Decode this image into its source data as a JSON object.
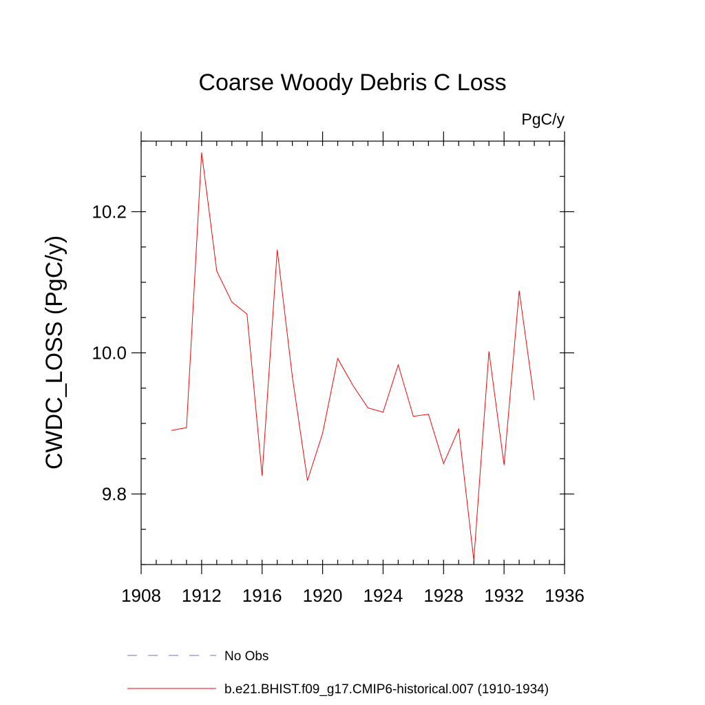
{
  "chart_data": {
    "type": "line",
    "title": "Coarse Woody Debris C Loss",
    "units_label": "PgC/y",
    "xlabel": "",
    "ylabel": "CWDC_LOSS  (PgC/y)",
    "xlim": [
      1908,
      1936
    ],
    "ylim": [
      9.7,
      10.3
    ],
    "x_ticks": [
      1908,
      1912,
      1916,
      1920,
      1924,
      1928,
      1932,
      1936
    ],
    "x_minor_step": 1,
    "y_ticks": [
      9.8,
      10.0,
      10.2
    ],
    "y_tick_labels": [
      "9.8",
      "10.0",
      "10.2"
    ],
    "y_minor_step": 0.05,
    "grid": false,
    "series": [
      {
        "name": "b.e21.BHIST.f09_g17.CMIP6-historical.007 (1910-1934)",
        "color": "#ff0000",
        "dashed": false,
        "x": [
          1910,
          1911,
          1912,
          1913,
          1914,
          1915,
          1916,
          1917,
          1918,
          1919,
          1920,
          1921,
          1922,
          1923,
          1924,
          1925,
          1926,
          1927,
          1928,
          1929,
          1930,
          1931,
          1932,
          1933,
          1934
        ],
        "values": [
          9.89,
          9.894,
          10.284,
          10.116,
          10.072,
          10.055,
          9.826,
          10.146,
          9.966,
          9.819,
          9.886,
          9.992,
          9.954,
          9.922,
          9.916,
          9.983,
          9.91,
          9.913,
          9.843,
          9.892,
          9.706,
          10.002,
          9.841,
          10.088,
          9.933
        ]
      }
    ],
    "legend": {
      "placement": "bottom-left",
      "entries": [
        {
          "label": "No Obs",
          "color": "#6b6bd6",
          "dashed": true
        },
        {
          "label": "b.e21.BHIST.f09_g17.CMIP6-historical.007 (1910-1934)",
          "color": "#ff0000",
          "dashed": false
        }
      ]
    }
  }
}
